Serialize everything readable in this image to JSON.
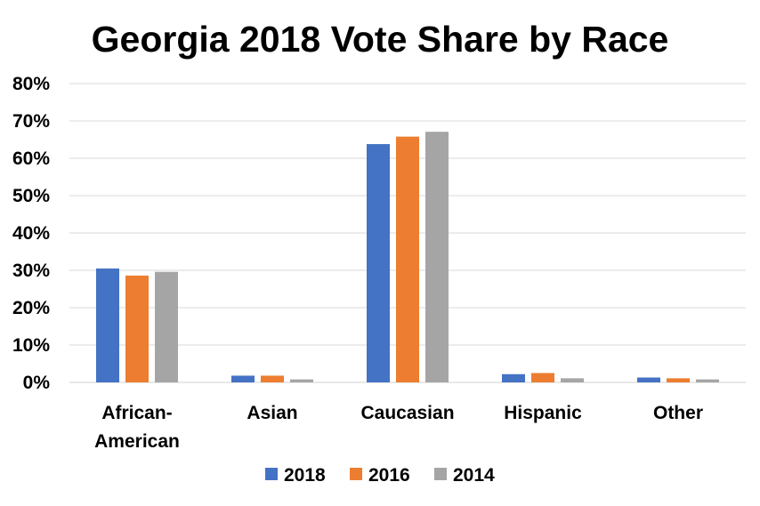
{
  "chart_data": {
    "type": "bar",
    "title": "Georgia 2018 Vote Share by Race",
    "xlabel": "",
    "ylabel": "",
    "categories": [
      "African-American",
      "Asian",
      "Caucasian",
      "Hispanic",
      "Other"
    ],
    "category_lines": [
      [
        "African-",
        "American"
      ],
      [
        "Asian"
      ],
      [
        "Caucasian"
      ],
      [
        "Hispanic"
      ],
      [
        "Other"
      ]
    ],
    "series": [
      {
        "name": "2018",
        "color": "#4472C4",
        "values": [
          30.5,
          1.8,
          63.8,
          2.2,
          1.3
        ]
      },
      {
        "name": "2016",
        "color": "#ED7D31",
        "values": [
          28.6,
          1.8,
          65.8,
          2.5,
          1.1
        ]
      },
      {
        "name": "2014",
        "color": "#A5A5A5",
        "values": [
          29.6,
          0.8,
          67.1,
          1.1,
          0.8
        ]
      }
    ],
    "ylim": [
      0,
      80
    ],
    "yticks": [
      0,
      10,
      20,
      30,
      40,
      50,
      60,
      70,
      80
    ],
    "ytick_labels": [
      "0%",
      "10%",
      "20%",
      "30%",
      "40%",
      "50%",
      "60%",
      "70%",
      "80%"
    ],
    "grid": true,
    "legend_position": "bottom"
  }
}
